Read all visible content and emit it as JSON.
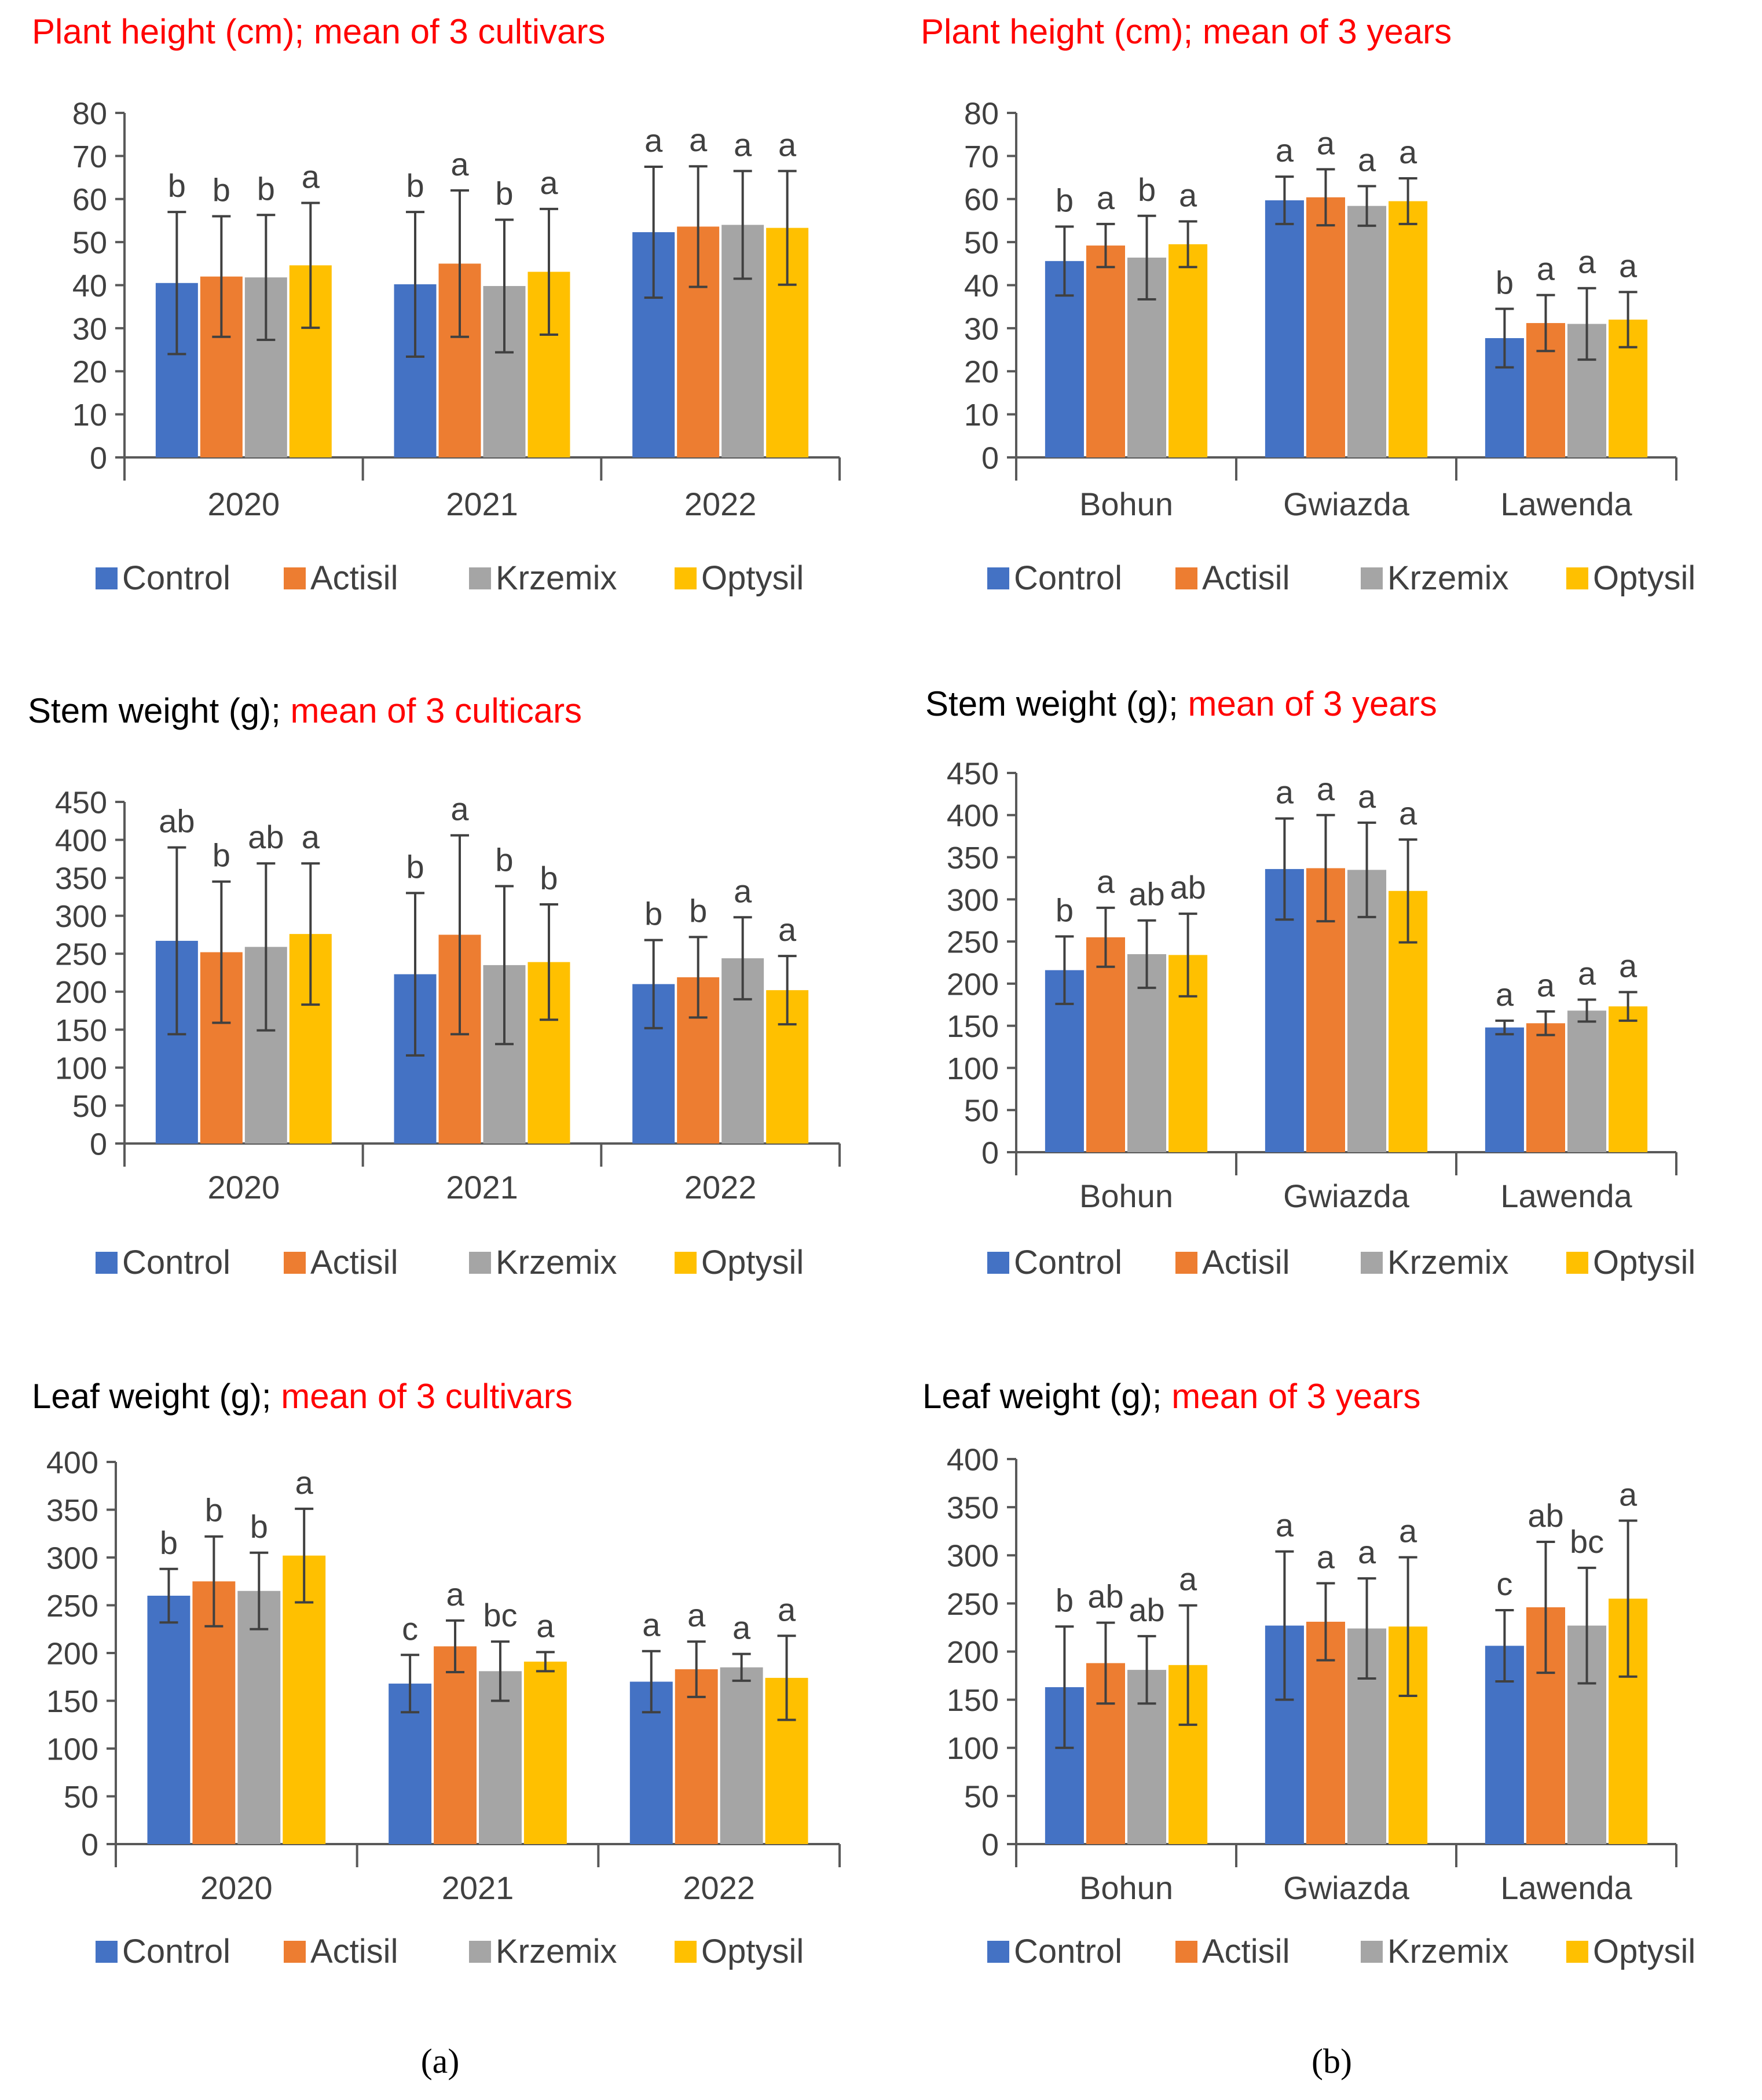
{
  "figure": {
    "panel_labels": [
      "(a)",
      "(b)"
    ],
    "colors": {
      "Control": "#4472C4",
      "Actisil": "#ED7D31",
      "Krzemix": "#A5A5A5",
      "Optysil": "#FFC000",
      "axis": "#595959",
      "title_black": "#000000",
      "title_red": "#FF0000",
      "text": "#404040"
    }
  },
  "chart_data": [
    {
      "type": "bar",
      "title_black": "",
      "title_red": "Plant height (cm); mean of 3 cultivars",
      "categories": [
        "2020",
        "2021",
        "2022"
      ],
      "ylim": [
        0,
        80
      ],
      "yticks": [
        0,
        10,
        20,
        30,
        40,
        50,
        60,
        70,
        80
      ],
      "series": [
        {
          "name": "Control",
          "values": [
            40.5,
            40.2,
            52.3
          ],
          "errors": [
            16.5,
            16.8,
            15.2
          ],
          "letters": [
            "b",
            "b",
            "a"
          ]
        },
        {
          "name": "Actisil",
          "values": [
            42.0,
            45.0,
            53.6
          ],
          "errors": [
            14.0,
            17.0,
            14.0
          ],
          "letters": [
            "b",
            "a",
            "a"
          ]
        },
        {
          "name": "Krzemix",
          "values": [
            41.8,
            39.8,
            54.0
          ],
          "errors": [
            14.5,
            15.4,
            12.5
          ],
          "letters": [
            "b",
            "b",
            "a"
          ]
        },
        {
          "name": "Optysil",
          "values": [
            44.6,
            43.1,
            53.3
          ],
          "errors": [
            14.5,
            14.6,
            13.2
          ],
          "letters": [
            "a",
            "a",
            "a"
          ]
        }
      ]
    },
    {
      "type": "bar",
      "title_black": "",
      "title_red": "Plant height (cm); mean of 3 years",
      "categories": [
        "Bohun",
        "Gwiazda",
        "Lawenda"
      ],
      "ylim": [
        0,
        80
      ],
      "yticks": [
        0,
        10,
        20,
        30,
        40,
        50,
        60,
        70,
        80
      ],
      "series": [
        {
          "name": "Control",
          "values": [
            45.6,
            59.7,
            27.7
          ],
          "errors": [
            8.0,
            5.5,
            6.8
          ],
          "letters": [
            "b",
            "a",
            "b"
          ]
        },
        {
          "name": "Actisil",
          "values": [
            49.2,
            60.4,
            31.2
          ],
          "errors": [
            5.0,
            6.5,
            6.5
          ],
          "letters": [
            "a",
            "a",
            "a"
          ]
        },
        {
          "name": "Krzemix",
          "values": [
            46.4,
            58.4,
            31.0
          ],
          "errors": [
            9.7,
            4.6,
            8.3
          ],
          "letters": [
            "b",
            "a",
            "a"
          ]
        },
        {
          "name": "Optysil",
          "values": [
            49.5,
            59.5,
            32.0
          ],
          "errors": [
            5.3,
            5.3,
            6.4
          ],
          "letters": [
            "a",
            "a",
            "a"
          ]
        }
      ]
    },
    {
      "type": "bar",
      "title_black": "Stem weight (g); ",
      "title_red": "mean of 3 culticars",
      "categories": [
        "2020",
        "2021",
        "2022"
      ],
      "ylim": [
        0,
        450
      ],
      "yticks": [
        0,
        50,
        100,
        150,
        200,
        250,
        300,
        350,
        400,
        450
      ],
      "series": [
        {
          "name": "Control",
          "values": [
            267,
            223,
            210
          ],
          "errors": [
            123,
            107,
            58
          ],
          "letters": [
            "ab",
            "b",
            "b"
          ]
        },
        {
          "name": "Actisil",
          "values": [
            252,
            275,
            219
          ],
          "errors": [
            93,
            131,
            53
          ],
          "letters": [
            "b",
            "a",
            "b"
          ]
        },
        {
          "name": "Krzemix",
          "values": [
            259,
            235,
            244
          ],
          "errors": [
            110,
            104,
            54
          ],
          "letters": [
            "ab",
            "b",
            "a"
          ]
        },
        {
          "name": "Optysil",
          "values": [
            276,
            239,
            202
          ],
          "errors": [
            93,
            76,
            45
          ],
          "letters": [
            "a",
            "b",
            "a"
          ]
        }
      ]
    },
    {
      "type": "bar",
      "title_black": "Stem weight (g); ",
      "title_red": "mean of 3 years",
      "categories": [
        "Bohun",
        "Gwiazda",
        "Lawenda"
      ],
      "ylim": [
        0,
        450
      ],
      "yticks": [
        0,
        50,
        100,
        150,
        200,
        250,
        300,
        350,
        400,
        450
      ],
      "series": [
        {
          "name": "Control",
          "values": [
            216,
            336,
            148
          ],
          "errors": [
            40,
            60,
            8
          ],
          "letters": [
            "b",
            "a",
            "a"
          ]
        },
        {
          "name": "Actisil",
          "values": [
            255,
            337,
            153
          ],
          "errors": [
            35,
            63,
            14
          ],
          "letters": [
            "a",
            "a",
            "a"
          ]
        },
        {
          "name": "Krzemix",
          "values": [
            235,
            335,
            168
          ],
          "errors": [
            40,
            56,
            13
          ],
          "letters": [
            "ab",
            "a",
            "a"
          ]
        },
        {
          "name": "Optysil",
          "values": [
            234,
            310,
            173
          ],
          "errors": [
            49,
            61,
            17
          ],
          "letters": [
            "ab",
            "a",
            "a"
          ]
        }
      ]
    },
    {
      "type": "bar",
      "title_black": "Leaf weight (g); ",
      "title_red": "mean of 3 cultivars",
      "categories": [
        "2020",
        "2021",
        "2022"
      ],
      "ylim": [
        0,
        400
      ],
      "yticks": [
        0,
        50,
        100,
        150,
        200,
        250,
        300,
        350,
        400
      ],
      "series": [
        {
          "name": "Control",
          "values": [
            260,
            168,
            170
          ],
          "errors": [
            28,
            30,
            32
          ],
          "letters": [
            "b",
            "c",
            "a"
          ]
        },
        {
          "name": "Actisil",
          "values": [
            275,
            207,
            183
          ],
          "errors": [
            47,
            27,
            29
          ],
          "letters": [
            "b",
            "a",
            "a"
          ]
        },
        {
          "name": "Krzemix",
          "values": [
            265,
            181,
            185
          ],
          "errors": [
            40,
            31,
            14
          ],
          "letters": [
            "b",
            "bc",
            "a"
          ]
        },
        {
          "name": "Optysil",
          "values": [
            302,
            191,
            174
          ],
          "errors": [
            49,
            10,
            44
          ],
          "letters": [
            "a",
            "a",
            "a"
          ]
        }
      ]
    },
    {
      "type": "bar",
      "title_black": "Leaf weight (g); ",
      "title_red": "mean of 3 years",
      "categories": [
        "Bohun",
        "Gwiazda",
        "Lawenda"
      ],
      "ylim": [
        0,
        400
      ],
      "yticks": [
        0,
        50,
        100,
        150,
        200,
        250,
        300,
        350,
        400
      ],
      "series": [
        {
          "name": "Control",
          "values": [
            163,
            227,
            206
          ],
          "errors": [
            63,
            77,
            37
          ],
          "letters": [
            "b",
            "a",
            "c"
          ]
        },
        {
          "name": "Actisil",
          "values": [
            188,
            231,
            246
          ],
          "errors": [
            42,
            40,
            68
          ],
          "letters": [
            "ab",
            "a",
            "ab"
          ]
        },
        {
          "name": "Krzemix",
          "values": [
            181,
            224,
            227
          ],
          "errors": [
            35,
            52,
            60
          ],
          "letters": [
            "ab",
            "a",
            "bc"
          ]
        },
        {
          "name": "Optysil",
          "values": [
            186,
            226,
            255
          ],
          "errors": [
            62,
            72,
            81
          ],
          "letters": [
            "a",
            "a",
            "a"
          ]
        }
      ]
    }
  ]
}
